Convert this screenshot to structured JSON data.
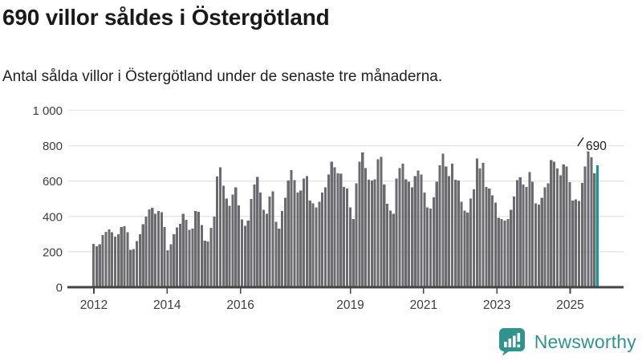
{
  "header": {
    "title": "690 villor såldes i Östergötland",
    "subtitle": "Antal sålda villor i Östergötland under de senaste tre månaderna."
  },
  "chart_data": {
    "type": "bar",
    "title": "690 villor såldes i Östergötland",
    "subtitle": "Antal sålda villor i Östergötland under de senaste tre månaderna.",
    "xlabel": "",
    "ylabel": "",
    "x_start": "2012-01",
    "x_interval": "month",
    "ylim": [
      0,
      1000
    ],
    "grid": "horizontal",
    "legend": "none",
    "ytick_values": [
      0,
      200,
      400,
      600,
      800,
      1000
    ],
    "ytick_labels": [
      "0",
      "200",
      "400",
      "600",
      "800",
      "1 000"
    ],
    "xtick_years": [
      2012,
      2014,
      2016,
      2019,
      2021,
      2023,
      2025
    ],
    "xtick_labels": [
      "2012",
      "2014",
      "2016",
      "2019",
      "2021",
      "2023",
      "2025"
    ],
    "values": [
      245,
      232,
      243,
      295,
      312,
      327,
      310,
      285,
      300,
      340,
      345,
      310,
      210,
      215,
      260,
      300,
      355,
      400,
      440,
      450,
      415,
      430,
      425,
      340,
      208,
      243,
      299,
      339,
      359,
      415,
      381,
      324,
      332,
      430,
      427,
      351,
      264,
      259,
      336,
      398,
      626,
      679,
      573,
      502,
      460,
      523,
      565,
      463,
      384,
      347,
      377,
      498,
      581,
      623,
      535,
      437,
      415,
      513,
      543,
      369,
      332,
      430,
      505,
      603,
      663,
      606,
      535,
      547,
      614,
      629,
      490,
      475,
      452,
      483,
      535,
      565,
      638,
      709,
      679,
      644,
      641,
      566,
      558,
      452,
      385,
      588,
      709,
      762,
      674,
      608,
      603,
      611,
      724,
      737,
      581,
      472,
      433,
      415,
      615,
      674,
      698,
      611,
      596,
      565,
      629,
      661,
      638,
      535,
      452,
      445,
      508,
      596,
      689,
      754,
      683,
      629,
      698,
      608,
      603,
      483,
      433,
      422,
      502,
      553,
      728,
      671,
      704,
      566,
      558,
      520,
      478,
      392,
      385,
      377,
      385,
      437,
      513,
      606,
      621,
      581,
      568,
      651,
      596,
      475,
      467,
      505,
      565,
      588,
      719,
      709,
      671,
      633,
      694,
      683,
      593,
      490,
      497,
      488,
      590,
      683,
      810,
      735,
      645,
      690
    ],
    "highlight_last": true,
    "annotation": {
      "label": "690",
      "value": 690
    },
    "colors": {
      "bar": "#6a6a6f",
      "highlight": "#0e99a0",
      "grid": "#e7e7e7",
      "axis": "#454545",
      "tick_text": "#3d3d3d",
      "annotation_text": "#1a1a1a"
    }
  },
  "footer": {
    "brand": "Newsworthy",
    "brand_color": "#2f948e",
    "logo_icon": "bar-chart-speech-bubble"
  }
}
